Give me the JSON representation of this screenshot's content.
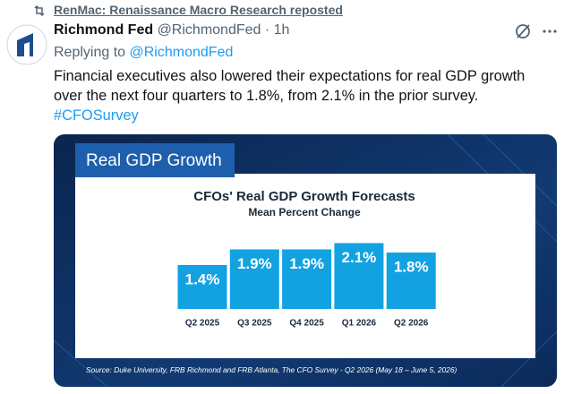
{
  "repost": {
    "text": "RenMac: Renaissance Macro Research reposted"
  },
  "tweet": {
    "author": "Richmond Fed",
    "handle": "@RichmondFed",
    "separator": "·",
    "time": "1h",
    "reply_prefix": "Replying to",
    "reply_to": "@RichmondFed",
    "text_lines": [
      "Financial executives also lowered their expectations for real GDP growth",
      "over the next four quarters to 1.8%, from 2.1% in the prior survey."
    ],
    "hashtag": "#CFOSurvey"
  },
  "image": {
    "banner": "Real GDP Growth",
    "chart_data": {
      "type": "bar",
      "title": "CFOs' Real GDP Growth Forecasts",
      "subtitle": "Mean Percent Change",
      "categories": [
        "Q2 2025",
        "Q3 2025",
        "Q4 2025",
        "Q1 2026",
        "Q2 2026"
      ],
      "values": [
        1.4,
        1.9,
        1.9,
        2.1,
        1.8
      ],
      "value_labels": [
        "1.4%",
        "1.9%",
        "1.9%",
        "2.1%",
        "1.8%"
      ],
      "color": "#12a2e2"
    },
    "source": "Source: Duke University, FRB Richmond and FRB Atlanta, The CFO Survey - Q2 2026 (May 18 – June 5, 2026)"
  }
}
